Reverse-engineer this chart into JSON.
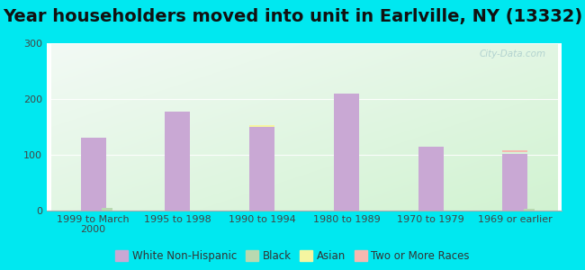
{
  "title": "Year householders moved into unit in Earlville, NY (13332)",
  "categories": [
    "1999 to March\n2000",
    "1995 to 1998",
    "1990 to 1994",
    "1980 to 1989",
    "1970 to 1979",
    "1969 or earlier"
  ],
  "white_non_hispanic": [
    130,
    178,
    150,
    210,
    115,
    102
  ],
  "black": [
    5,
    0,
    0,
    0,
    0,
    3
  ],
  "asian": [
    0,
    0,
    3,
    0,
    0,
    0
  ],
  "two_or_more": [
    0,
    0,
    0,
    0,
    0,
    3
  ],
  "bar_color_white": "#c9a8d4",
  "bar_color_black": "#b8d9b0",
  "bar_color_asian": "#f5f5a0",
  "bar_color_two": "#f5b8b0",
  "bg_outer": "#00e8f0",
  "ylim": [
    0,
    300
  ],
  "yticks": [
    0,
    100,
    200,
    300
  ],
  "title_fontsize": 14,
  "legend_fontsize": 8.5,
  "tick_fontsize": 8,
  "watermark": "City-Data.com"
}
